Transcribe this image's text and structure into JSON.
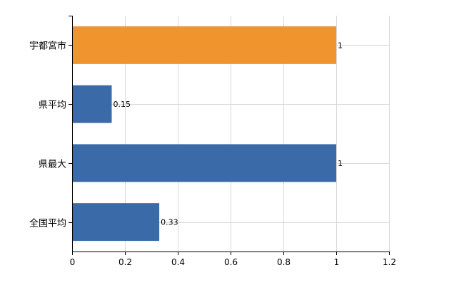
{
  "chart_data": {
    "type": "bar",
    "orientation": "horizontal",
    "categories": [
      "宇都宮市",
      "県平均",
      "県最大",
      "全国平均"
    ],
    "values": [
      1,
      0.15,
      1,
      0.33
    ],
    "value_labels": [
      "1",
      "0.15",
      "1",
      "0.33"
    ],
    "bar_colors": [
      "#f0942e",
      "#3a6ba8",
      "#3a6ba8",
      "#3a6ba8"
    ],
    "xlim": [
      0,
      1.2
    ],
    "xticks": [
      0,
      0.2,
      0.4,
      0.6,
      0.8,
      1,
      1.2
    ],
    "xtick_labels": [
      "0",
      "0.2",
      "0.4",
      "0.6",
      "0.8",
      "1",
      "1.2"
    ],
    "grid": true,
    "title": "",
    "xlabel": "",
    "ylabel": ""
  }
}
